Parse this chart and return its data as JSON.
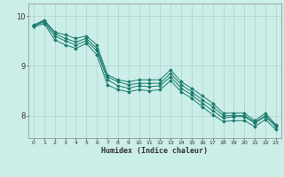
{
  "xlabel": "Humidex (Indice chaleur)",
  "ylabel": "",
  "background_color": "#cceee8",
  "grid_color": "#aad4cc",
  "line_color": "#1a7a6e",
  "xlim": [
    -0.5,
    23.5
  ],
  "ylim": [
    7.55,
    10.25
  ],
  "yticks": [
    8,
    9,
    10
  ],
  "xticks": [
    0,
    1,
    2,
    3,
    4,
    5,
    6,
    7,
    8,
    9,
    10,
    11,
    12,
    13,
    14,
    15,
    16,
    17,
    18,
    19,
    20,
    21,
    22,
    23
  ],
  "series": [
    [
      9.82,
      9.92,
      9.68,
      9.62,
      9.55,
      9.6,
      9.42,
      8.82,
      8.72,
      8.68,
      8.72,
      8.72,
      8.72,
      8.92,
      8.68,
      8.55,
      8.4,
      8.25,
      8.05,
      8.05,
      8.05,
      7.9,
      8.05,
      7.82
    ],
    [
      9.8,
      9.9,
      9.65,
      9.55,
      9.48,
      9.55,
      9.35,
      8.78,
      8.68,
      8.62,
      8.65,
      8.65,
      8.65,
      8.85,
      8.62,
      8.48,
      8.32,
      8.18,
      8.0,
      8.0,
      8.0,
      7.87,
      8.0,
      7.8
    ],
    [
      9.8,
      9.88,
      9.6,
      9.5,
      9.42,
      9.5,
      9.3,
      8.72,
      8.6,
      8.55,
      8.6,
      8.58,
      8.6,
      8.78,
      8.55,
      8.42,
      8.25,
      8.1,
      7.95,
      7.98,
      7.98,
      7.85,
      7.98,
      7.78
    ],
    [
      9.78,
      9.85,
      9.52,
      9.42,
      9.35,
      9.45,
      9.22,
      8.62,
      8.52,
      8.48,
      8.52,
      8.5,
      8.52,
      8.7,
      8.48,
      8.35,
      8.18,
      8.02,
      7.88,
      7.9,
      7.9,
      7.78,
      7.92,
      7.72
    ]
  ]
}
